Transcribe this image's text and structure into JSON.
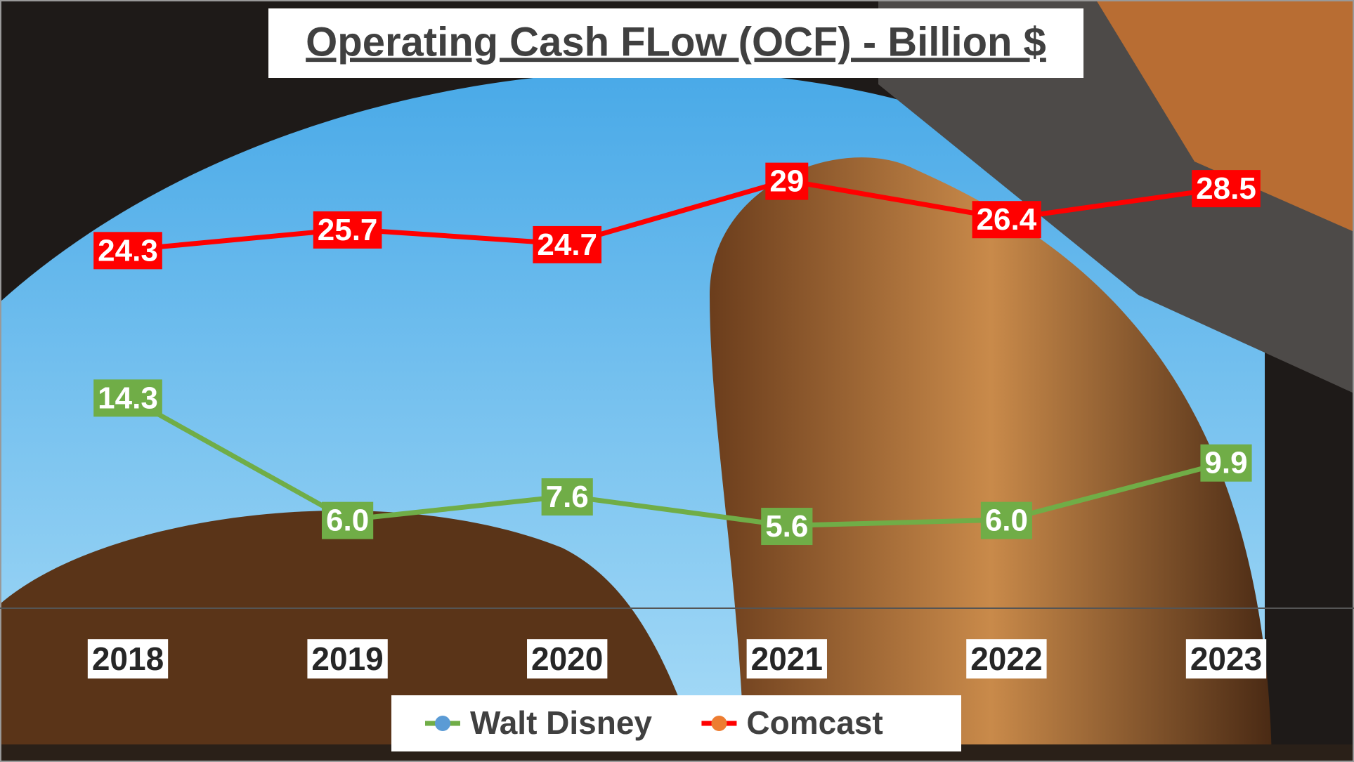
{
  "chart_data": {
    "type": "line",
    "title": "Operating Cash FLow (OCF) - Billion $",
    "categories": [
      "2018",
      "2019",
      "2020",
      "2021",
      "2022",
      "2023"
    ],
    "series": [
      {
        "name": "Walt Disney",
        "color": "#70ad47",
        "marker_color": "#5b9bd5",
        "values": [
          14.3,
          6.0,
          7.6,
          5.6,
          6.0,
          9.9
        ],
        "value_labels": [
          "14.3",
          "6.0",
          "7.6",
          "5.6",
          "6.0",
          "9.9"
        ]
      },
      {
        "name": "Comcast",
        "color": "#ff0000",
        "marker_color": "#ed7d31",
        "values": [
          24.3,
          25.7,
          24.7,
          29,
          26.4,
          28.5
        ]
      }
    ],
    "legend": "bottom"
  }
}
